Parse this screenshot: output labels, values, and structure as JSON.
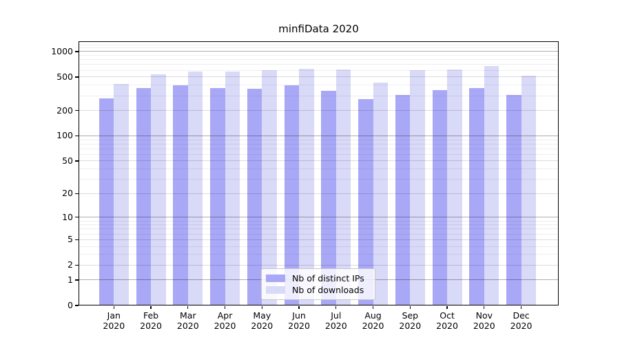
{
  "chart_data": {
    "type": "bar",
    "title": "minfiData 2020",
    "categories": [
      "Jan 2020",
      "Feb 2020",
      "Mar 2020",
      "Apr 2020",
      "May 2020",
      "Jun 2020",
      "Jul 2020",
      "Aug 2020",
      "Sep 2020",
      "Oct 2020",
      "Nov 2020",
      "Dec 2020"
    ],
    "series": [
      {
        "name": "Nb of distinct IPs",
        "color": "#a8a8f7",
        "values": [
          280,
          370,
          395,
          372,
          365,
          395,
          341,
          272,
          307,
          348,
          373,
          306
        ]
      },
      {
        "name": "Nb of downloads",
        "color": "#d9d9f8",
        "values": [
          410,
          540,
          585,
          583,
          600,
          625,
          610,
          430,
          605,
          612,
          670,
          520
        ]
      }
    ],
    "yticks": [
      1000,
      500,
      200,
      100,
      50,
      20,
      10,
      5,
      2,
      1,
      0
    ],
    "scale": "log1p",
    "ylim": [
      0,
      1320
    ],
    "xlabel": "",
    "ylabel": "",
    "grid": "both",
    "legend_position": "bottom-center"
  },
  "colors": {
    "background": "#ffffff",
    "spine": "#000000",
    "grid_major": "#adadad",
    "grid_minor": "#ededed"
  }
}
